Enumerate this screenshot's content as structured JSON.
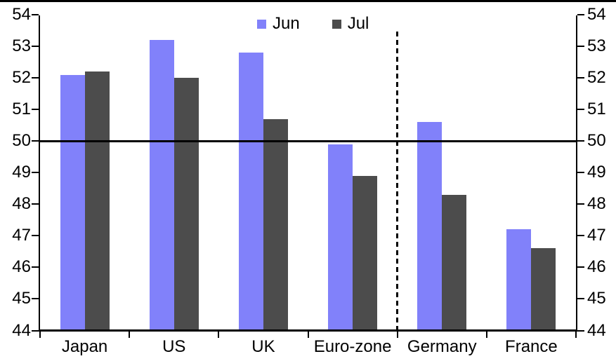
{
  "chart_data": {
    "type": "bar",
    "title": "",
    "categories": [
      "Japan",
      "US",
      "UK",
      "Euro-zone",
      "Germany",
      "France"
    ],
    "series": [
      {
        "name": "Jun",
        "color": "#8181FA",
        "values": [
          52.1,
          53.2,
          52.8,
          49.9,
          50.6,
          47.2
        ]
      },
      {
        "name": "Jul",
        "color": "#4C4C4C",
        "values": [
          52.2,
          52.0,
          50.7,
          48.9,
          48.3,
          46.6
        ]
      }
    ],
    "y_axis": {
      "min": 44,
      "max": 54,
      "step": 1,
      "sides": [
        "left",
        "right"
      ],
      "tick_labels": [
        44,
        45,
        46,
        47,
        48,
        49,
        50,
        51,
        52,
        53,
        54
      ]
    },
    "reference_line": 50,
    "divider": {
      "after_category": "Euro-zone",
      "style": "dashed"
    },
    "legend_position": "top-center",
    "grid": false,
    "colors": {
      "axis": "#000000",
      "background": "#ffffff",
      "reference_line": "#000000",
      "divider_line": "#000000"
    }
  }
}
